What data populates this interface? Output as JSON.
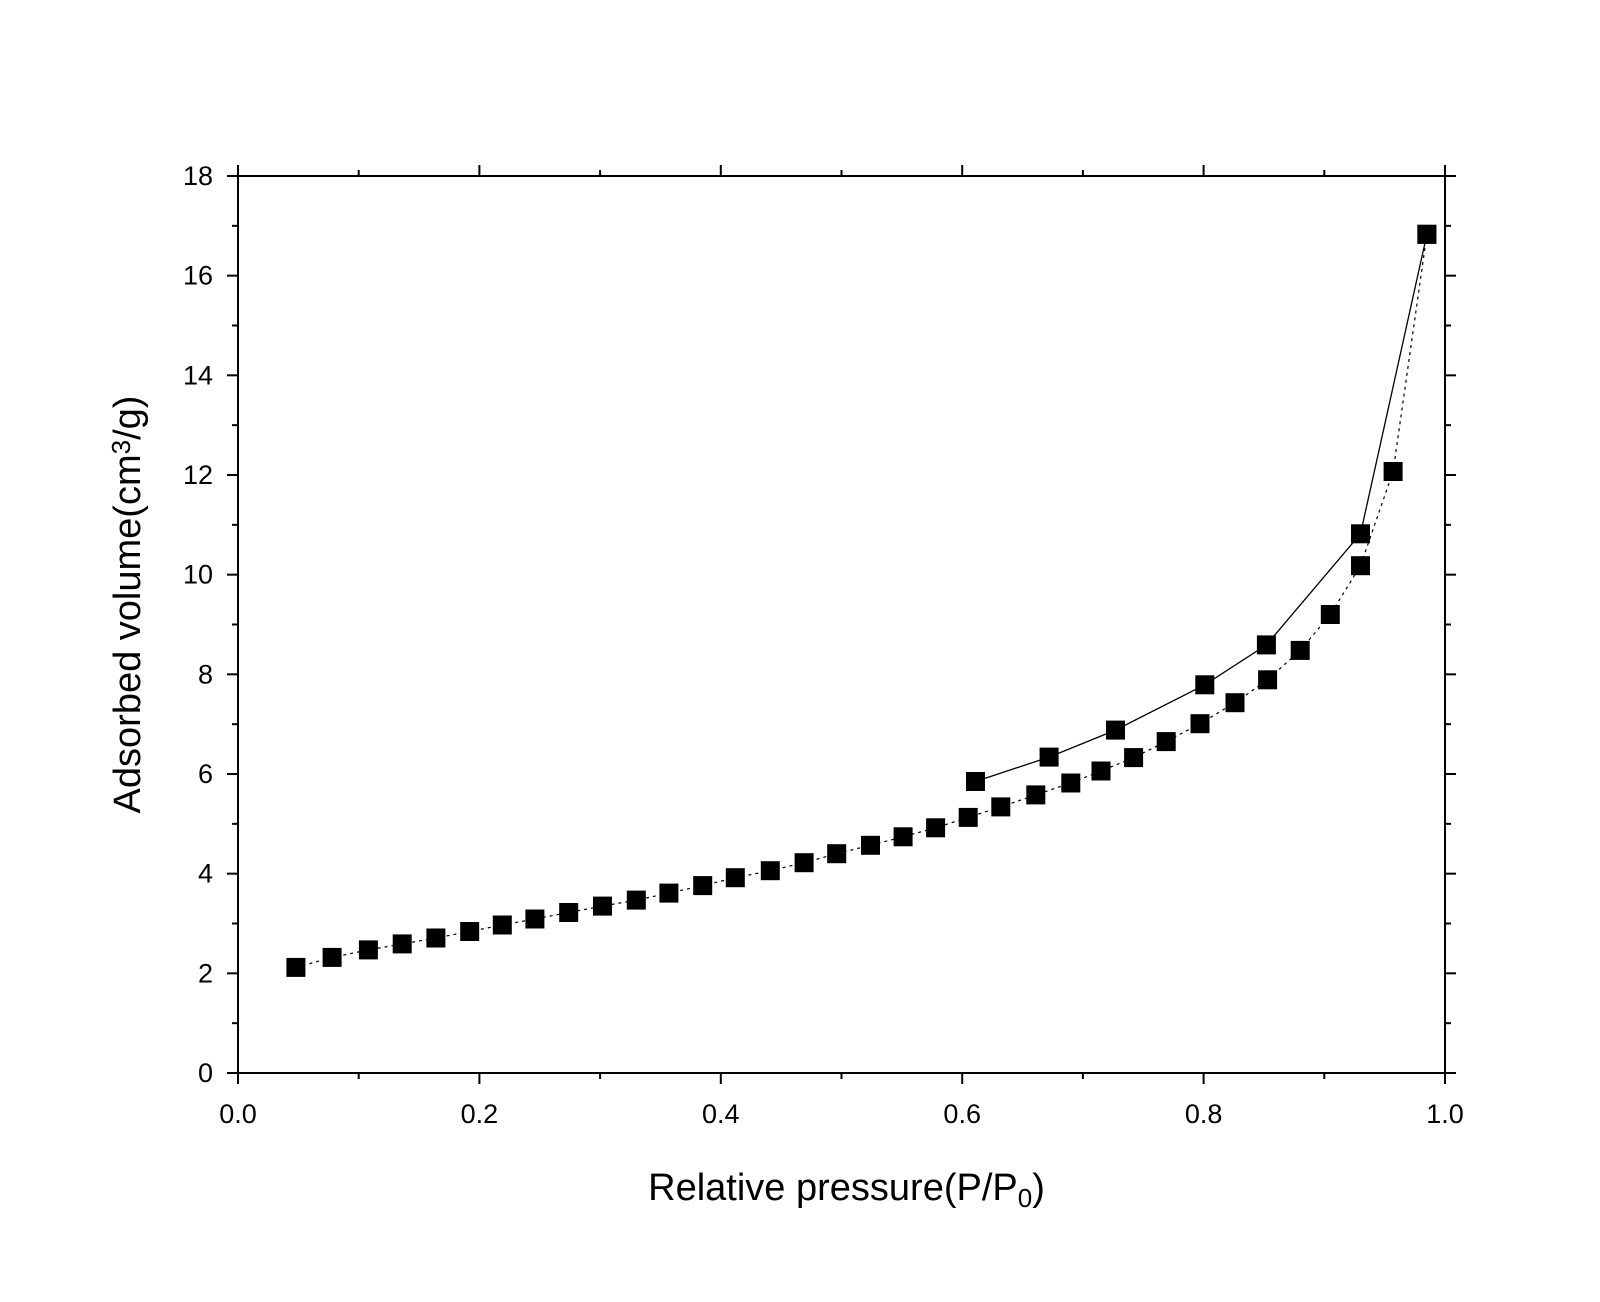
{
  "chart_data": {
    "type": "scatter",
    "title": "",
    "xlabel": {
      "main": "Relative pressure(P/P",
      "sub": "0",
      "tail": ")"
    },
    "ylabel": {
      "main": "Adsorbed volume(cm",
      "sup": "3",
      "tail": "/g)"
    },
    "xlim": [
      0.0,
      1.0
    ],
    "ylim": [
      0,
      18
    ],
    "x_ticks": [
      "0.0",
      "0.2",
      "0.4",
      "0.6",
      "0.8",
      "1.0"
    ],
    "y_ticks": [
      "0",
      "2",
      "4",
      "6",
      "8",
      "10",
      "12",
      "14",
      "16",
      "18"
    ],
    "grid": false,
    "legend": false,
    "marker_color": "#000000",
    "series": [
      {
        "line_style": "dotted",
        "points": [
          [
            0.048,
            2.12
          ],
          [
            0.078,
            2.32
          ],
          [
            0.108,
            2.47
          ],
          [
            0.136,
            2.59
          ],
          [
            0.164,
            2.71
          ],
          [
            0.192,
            2.84
          ],
          [
            0.219,
            2.97
          ],
          [
            0.246,
            3.09
          ],
          [
            0.274,
            3.22
          ],
          [
            0.302,
            3.35
          ],
          [
            0.33,
            3.47
          ],
          [
            0.357,
            3.61
          ],
          [
            0.385,
            3.76
          ],
          [
            0.412,
            3.92
          ],
          [
            0.441,
            4.06
          ],
          [
            0.469,
            4.22
          ],
          [
            0.496,
            4.4
          ],
          [
            0.524,
            4.57
          ],
          [
            0.551,
            4.74
          ],
          [
            0.578,
            4.92
          ],
          [
            0.605,
            5.13
          ],
          [
            0.632,
            5.34
          ],
          [
            0.661,
            5.58
          ],
          [
            0.69,
            5.82
          ],
          [
            0.715,
            6.06
          ],
          [
            0.742,
            6.33
          ],
          [
            0.769,
            6.65
          ],
          [
            0.797,
            7.01
          ],
          [
            0.826,
            7.43
          ],
          [
            0.853,
            7.89
          ],
          [
            0.88,
            8.48
          ],
          [
            0.905,
            9.2
          ],
          [
            0.93,
            10.18
          ],
          [
            0.957,
            12.07
          ],
          [
            0.985,
            16.83
          ]
        ]
      },
      {
        "line_style": "solid",
        "points": [
          [
            0.985,
            16.83
          ],
          [
            0.93,
            10.82
          ],
          [
            0.852,
            8.59
          ],
          [
            0.801,
            7.79
          ],
          [
            0.727,
            6.88
          ],
          [
            0.672,
            6.34
          ],
          [
            0.611,
            5.85
          ]
        ]
      }
    ]
  }
}
